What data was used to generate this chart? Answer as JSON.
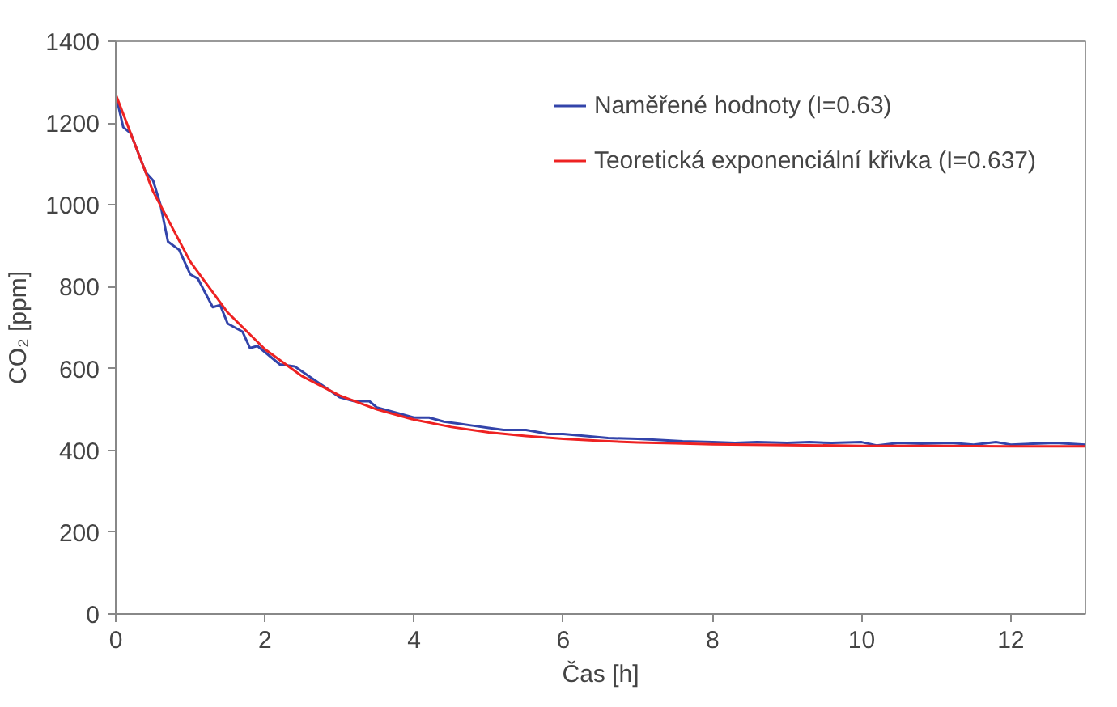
{
  "chart_data": {
    "type": "line",
    "xlabel": "Čas [h]",
    "ylabel": "CO₂ [ppm]",
    "xlim": [
      0,
      13
    ],
    "ylim": [
      0,
      1400
    ],
    "xticks": [
      0,
      2,
      4,
      6,
      8,
      10,
      12
    ],
    "yticks": [
      0,
      200,
      400,
      600,
      800,
      1000,
      1200,
      1400
    ],
    "grid": false,
    "legend": "top right",
    "marker": "none",
    "line_style": "solid",
    "series": [
      {
        "name": "Naměřené hodnoty (I=0.63)",
        "color": "#3344aa",
        "x": [
          0,
          0.1,
          0.2,
          0.4,
          0.5,
          0.6,
          0.7,
          0.85,
          1.0,
          1.1,
          1.3,
          1.4,
          1.5,
          1.7,
          1.8,
          1.9,
          2.2,
          2.4,
          2.6,
          2.8,
          3.0,
          3.2,
          3.4,
          3.5,
          3.8,
          4.0,
          4.2,
          4.4,
          4.6,
          4.8,
          5.0,
          5.2,
          5.5,
          5.8,
          6.0,
          6.3,
          6.6,
          7.0,
          7.3,
          7.6,
          8.0,
          8.3,
          8.6,
          9.0,
          9.3,
          9.6,
          10.0,
          10.2,
          10.5,
          10.8,
          11.2,
          11.5,
          11.8,
          12.0,
          12.3,
          12.6,
          13.0
        ],
        "values": [
          1270,
          1190,
          1175,
          1080,
          1060,
          1000,
          910,
          890,
          830,
          820,
          750,
          755,
          710,
          690,
          650,
          655,
          610,
          605,
          580,
          555,
          530,
          520,
          520,
          505,
          490,
          480,
          480,
          470,
          465,
          460,
          455,
          450,
          450,
          440,
          440,
          435,
          430,
          428,
          425,
          422,
          420,
          418,
          420,
          418,
          420,
          418,
          420,
          412,
          418,
          416,
          418,
          414,
          420,
          414,
          416,
          418,
          414
        ]
      },
      {
        "name": "Teoretická exponenciální křivka (I=0.637)",
        "color": "#ee2222",
        "x": [
          0,
          0.5,
          1,
          1.5,
          2,
          2.5,
          3,
          3.5,
          4,
          4.5,
          5,
          5.5,
          6,
          6.5,
          7,
          7.5,
          8,
          9,
          10,
          11,
          12,
          13
        ],
        "values": [
          1270,
          1033,
          861,
          737,
          647,
          581,
          534,
          500,
          475,
          457,
          444,
          435,
          428,
          423,
          419,
          417,
          415,
          413,
          411,
          411,
          410,
          410
        ]
      }
    ]
  }
}
